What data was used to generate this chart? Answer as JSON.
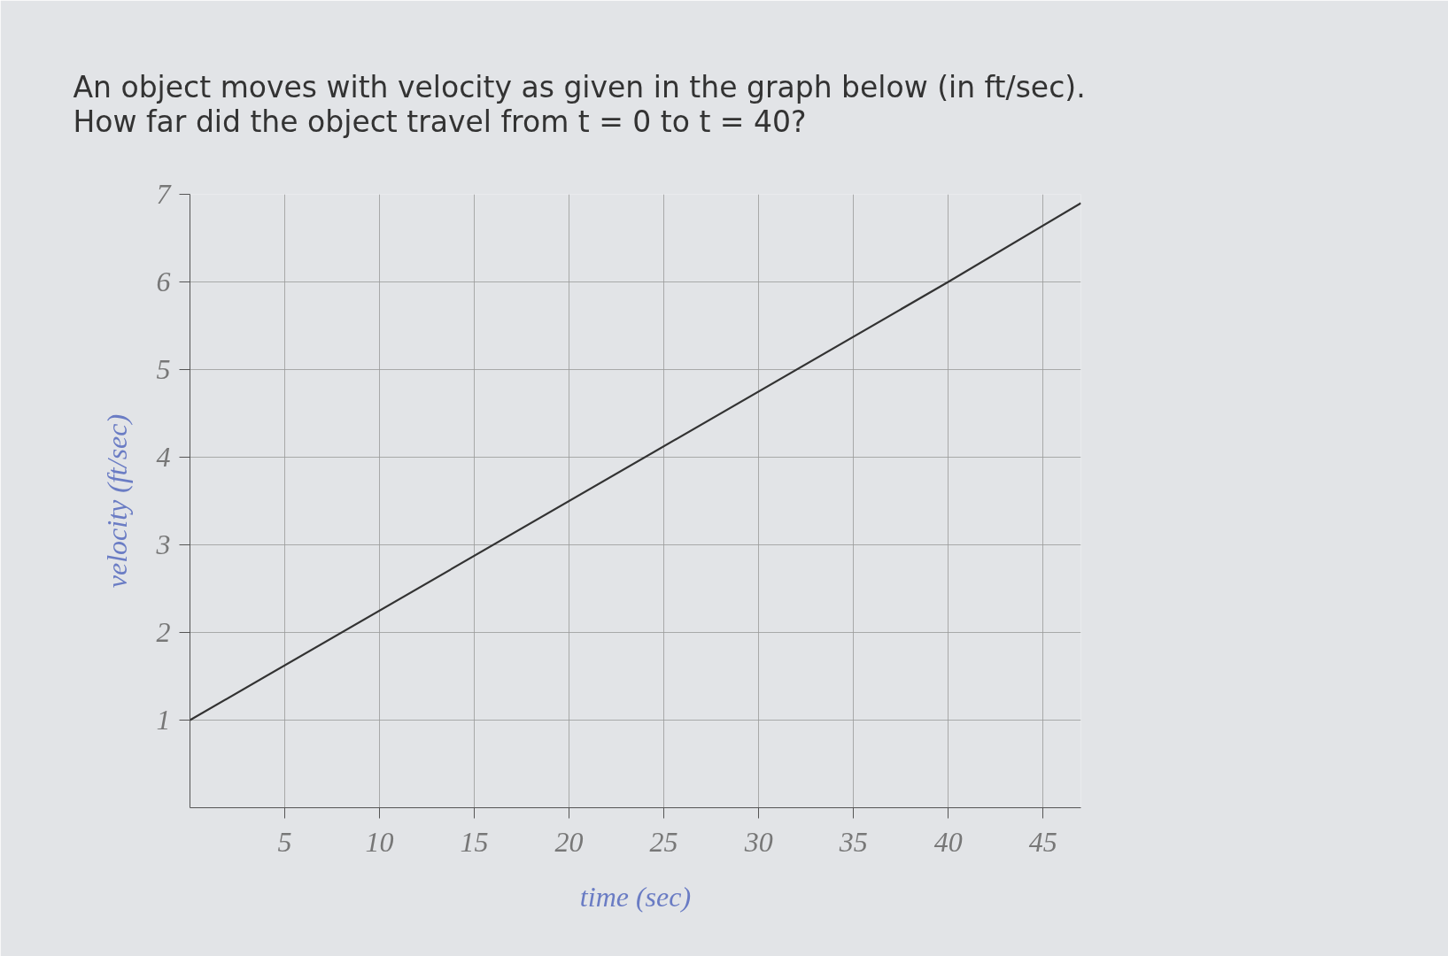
{
  "chart_data": {
    "type": "line",
    "title": "An object moves with velocity as given in the graph below (in ft/sec).\nHow far did the object travel from t = 0 to t = 40?",
    "xlabel": "time (sec)",
    "ylabel": "velocity (ft/sec)",
    "x": [
      0,
      40,
      47
    ],
    "series": [
      {
        "color": "#333333",
        "values": [
          1,
          6,
          6.9
        ]
      }
    ],
    "xlim": [
      0,
      47
    ],
    "xticks": [
      5,
      10,
      15,
      20,
      25,
      30,
      35,
      40,
      45
    ],
    "ylim": [
      0,
      7
    ],
    "yticks": [
      1,
      2,
      3,
      4,
      5,
      6,
      7
    ],
    "grid": true,
    "marker": "none",
    "line_style": "solid"
  }
}
